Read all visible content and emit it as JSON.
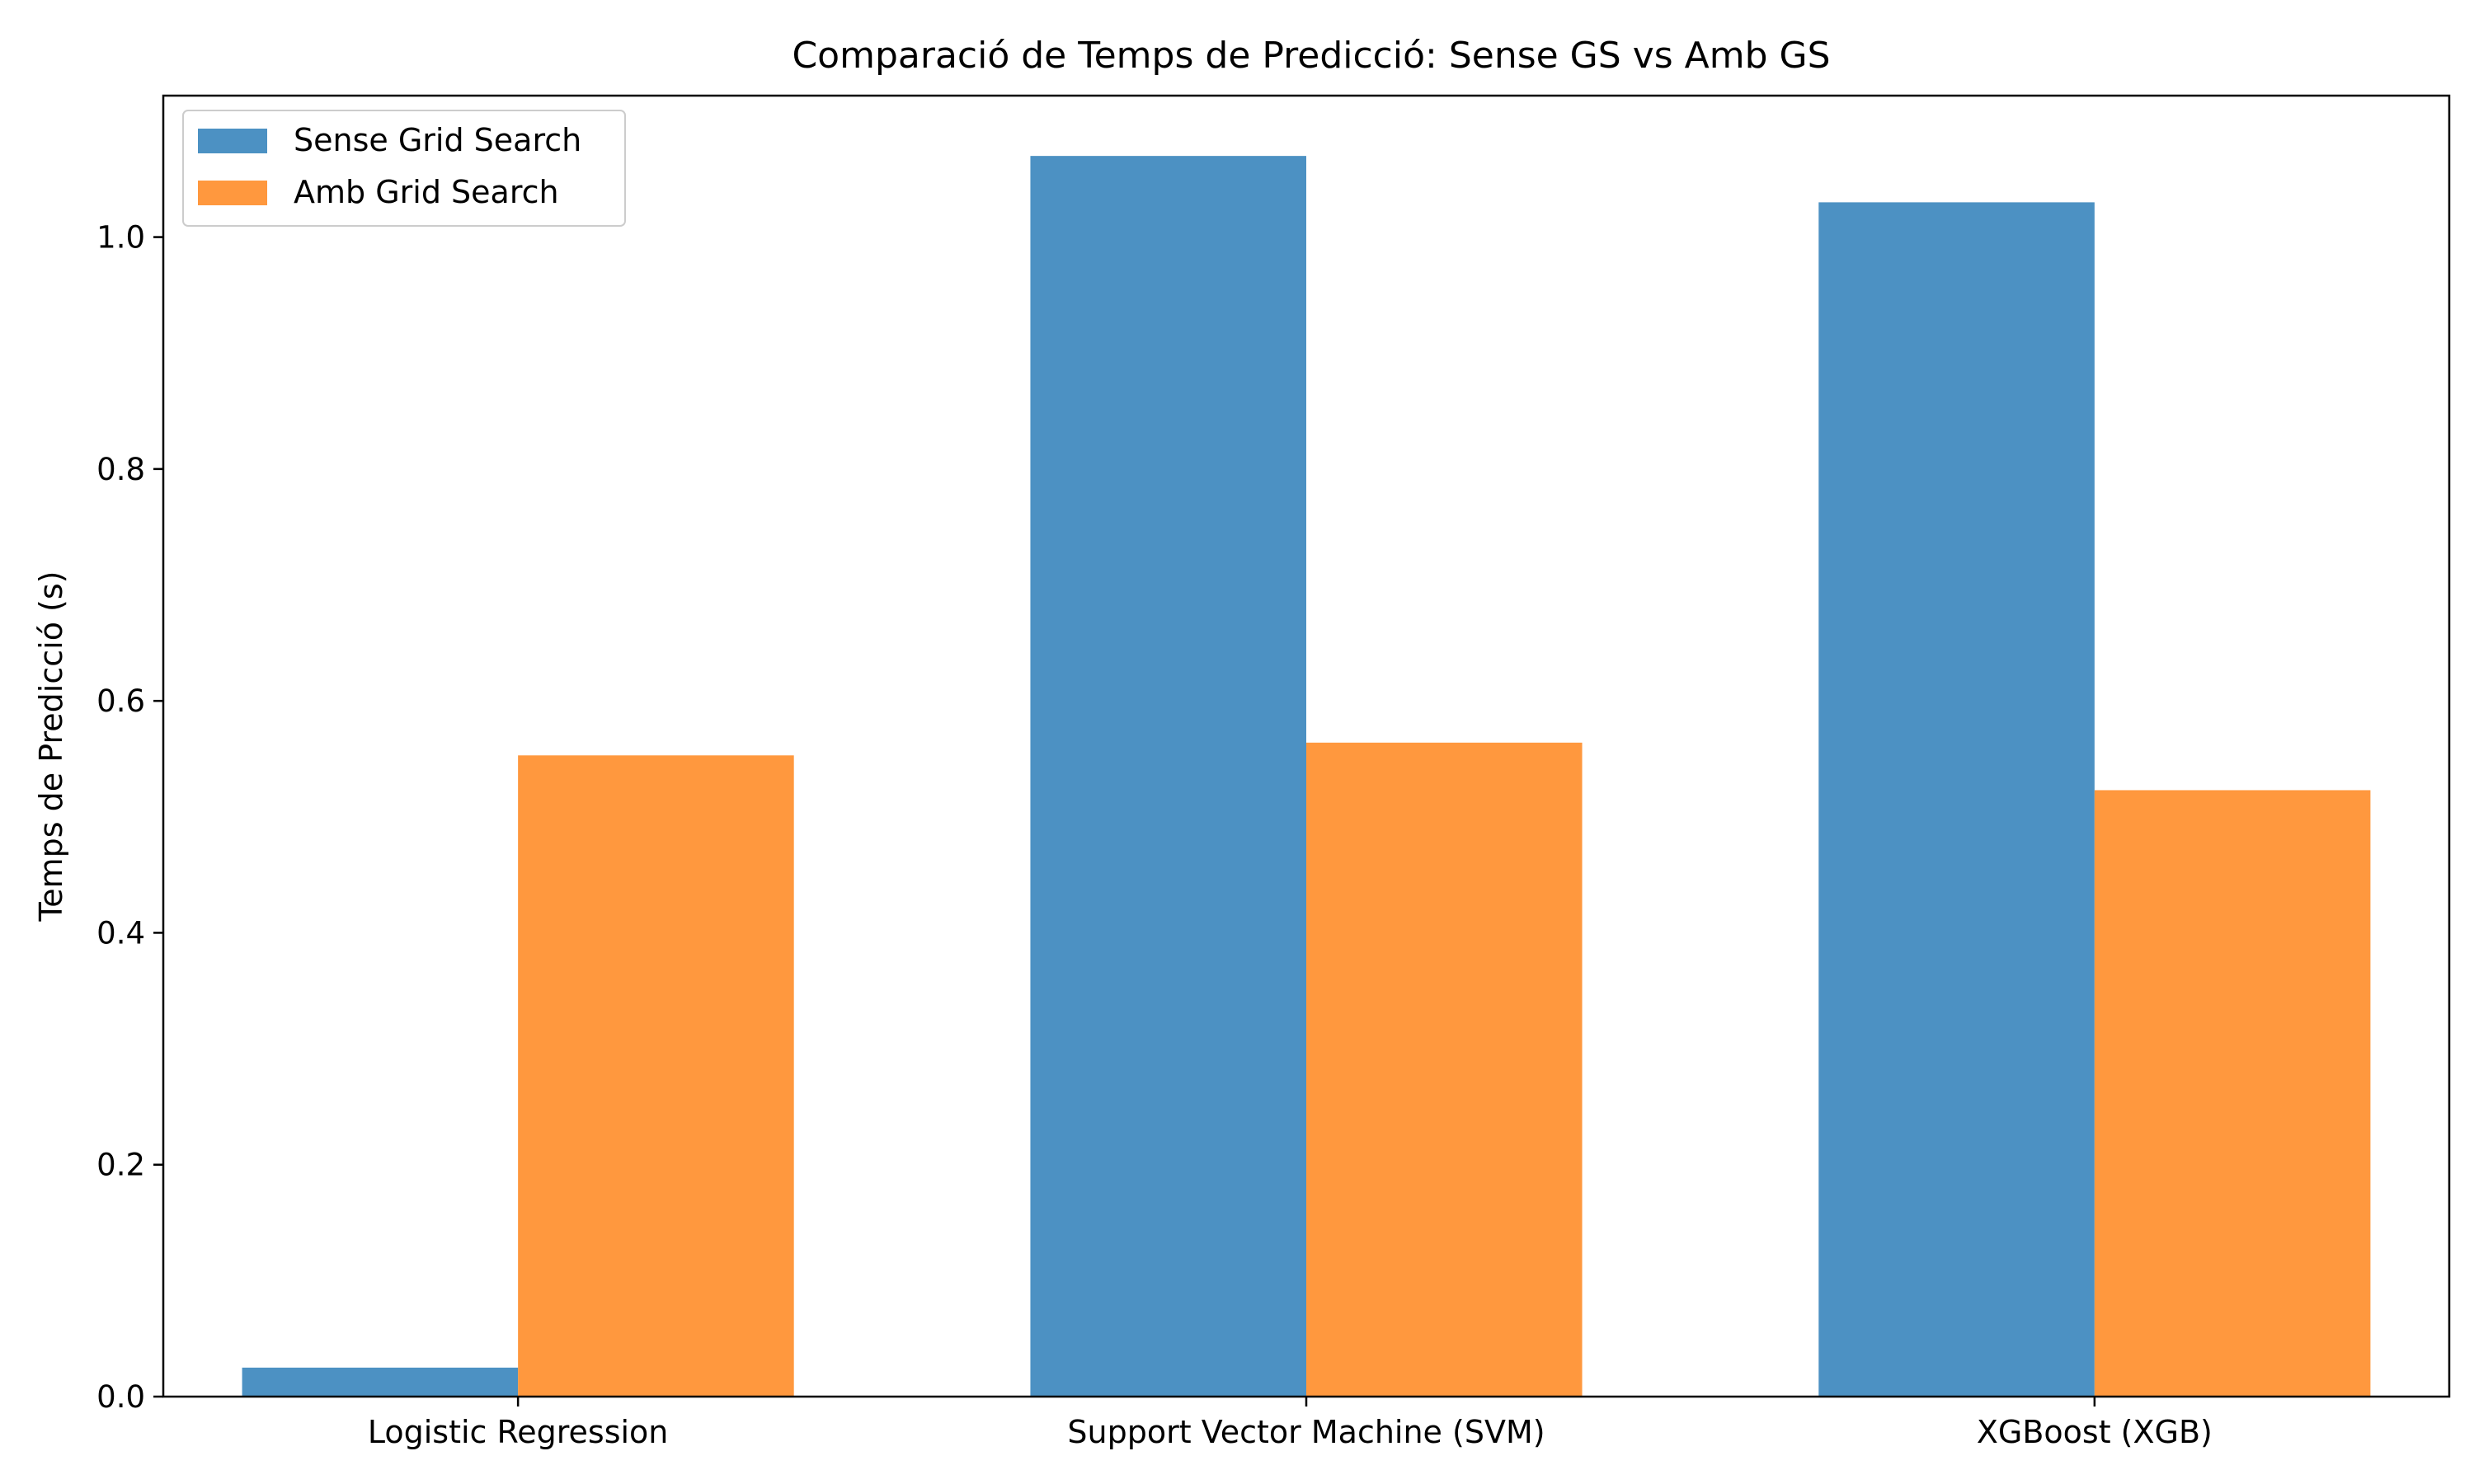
{
  "chart_data": {
    "type": "bar",
    "title": "Comparació de Temps de Predicció: Sense GS vs Amb GS",
    "xlabel": "",
    "ylabel": "Temps de Predicció (s)",
    "categories": [
      "Logistic Regression",
      "Support Vector Machine (SVM)",
      "XGBoost (XGB)"
    ],
    "series": [
      {
        "name": "Sense Grid Search",
        "values": [
          0.025,
          1.07,
          1.03
        ],
        "color": "#4c91c3"
      },
      {
        "name": "Amb Grid Search",
        "values": [
          0.553,
          0.564,
          0.523
        ],
        "color": "#ff983e"
      }
    ],
    "ylim": [
      0,
      1.122
    ],
    "yticks": [
      0.0,
      0.2,
      0.4,
      0.6,
      0.8,
      1.0
    ],
    "ytick_labels": [
      "0.0",
      "0.2",
      "0.4",
      "0.6",
      "0.8",
      "1.0"
    ],
    "grid": false,
    "legend_position": "top-left"
  }
}
